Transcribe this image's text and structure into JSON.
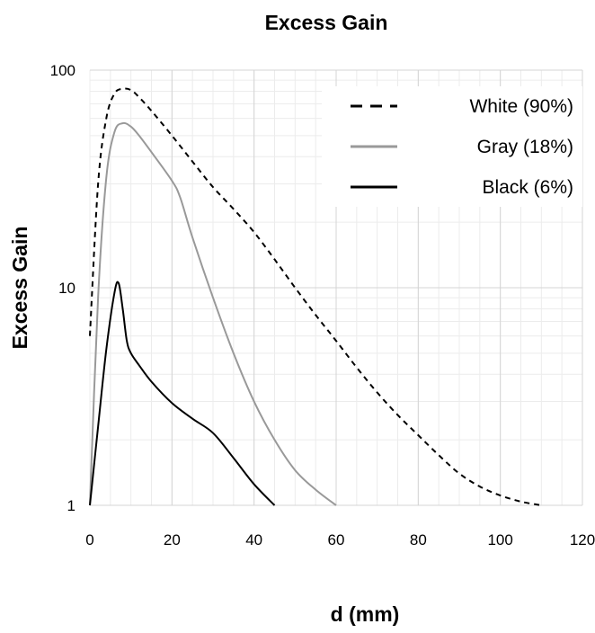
{
  "chart_data": {
    "type": "line",
    "title": "Excess Gain",
    "xlabel": "d (mm)",
    "ylabel": "Excess Gain",
    "xlim": [
      0,
      120
    ],
    "ylim": [
      1,
      100
    ],
    "yscale": "log",
    "grid": true,
    "legend_position": "top-right",
    "x_ticks": [
      "0",
      "20",
      "40",
      "60",
      "80",
      "100",
      "120"
    ],
    "y_ticks": [
      "1",
      "10",
      "100"
    ],
    "series": [
      {
        "name": "White (90%)",
        "style": "dashed",
        "color": "#000000",
        "x": [
          0,
          2,
          4,
          6,
          8,
          10,
          12,
          15,
          20,
          25,
          30,
          35,
          40,
          45,
          50,
          55,
          60,
          65,
          70,
          75,
          80,
          85,
          90,
          95,
          100,
          105,
          110
        ],
        "y": [
          6,
          30,
          60,
          78,
          82,
          81,
          75,
          65,
          50,
          38,
          29,
          23,
          18,
          13.5,
          10,
          7.5,
          5.7,
          4.3,
          3.3,
          2.6,
          2.1,
          1.7,
          1.4,
          1.22,
          1.11,
          1.04,
          1.0
        ]
      },
      {
        "name": "Gray (18%)",
        "style": "solid",
        "color": "#999999",
        "x": [
          0,
          2,
          4,
          6,
          8,
          10,
          12,
          15,
          20,
          22,
          25,
          30,
          35,
          40,
          45,
          50,
          55,
          60
        ],
        "y": [
          1.0,
          9,
          32,
          52,
          57,
          55,
          50,
          42,
          31,
          26,
          17,
          9,
          5,
          3,
          2,
          1.45,
          1.18,
          1.0
        ]
      },
      {
        "name": "Black (6%)",
        "style": "solid",
        "color": "#000000",
        "x": [
          0,
          2,
          4,
          6,
          7,
          8,
          9,
          10,
          12,
          15,
          20,
          25,
          30,
          35,
          40,
          45
        ],
        "y": [
          1.0,
          2.3,
          5.2,
          9.5,
          10.5,
          8,
          5.7,
          5.0,
          4.4,
          3.7,
          2.95,
          2.5,
          2.15,
          1.65,
          1.25,
          1.0
        ]
      }
    ]
  }
}
